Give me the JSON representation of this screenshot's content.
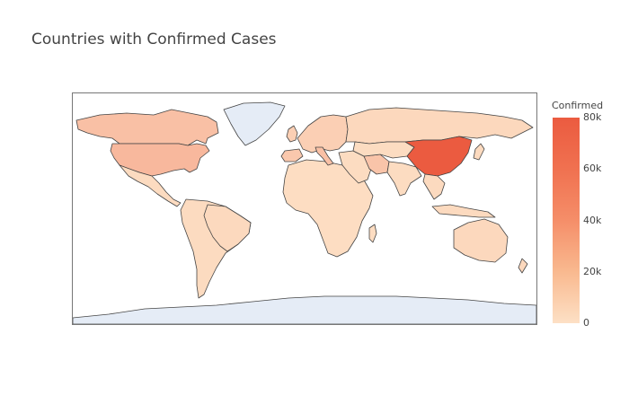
{
  "title": "Countries with Confirmed Cases",
  "colorbar": {
    "title": "Confirmed",
    "ticks": [
      "0",
      "20k",
      "40k",
      "60k",
      "80k"
    ],
    "tick_values": [
      0,
      20000,
      40000,
      60000,
      80000
    ],
    "range": [
      0,
      80000
    ],
    "colors": [
      "#fde0c5",
      "#eb5b40"
    ]
  },
  "chart_data": {
    "type": "choropleth",
    "projection": "equirectangular",
    "z_range": [
      0,
      80000
    ],
    "no_data_color": "#e5ecf6",
    "regions": [
      {
        "id": "china",
        "value": 80000
      },
      {
        "id": "usa",
        "value": 16000
      },
      {
        "id": "canada",
        "value": 12000
      },
      {
        "id": "italy",
        "value": 12000
      },
      {
        "id": "iran",
        "value": 10000
      },
      {
        "id": "spain",
        "value": 8000
      },
      {
        "id": "europe",
        "value": 5000
      },
      {
        "id": "russia",
        "value": 2000
      },
      {
        "id": "australia",
        "value": 2000
      },
      {
        "id": "brazil",
        "value": 1500
      },
      {
        "id": "south-america",
        "value": 1000
      },
      {
        "id": "africa",
        "value": 500
      },
      {
        "id": "india",
        "value": 800
      },
      {
        "id": "central-asia",
        "value": 700
      },
      {
        "id": "southeast-asia",
        "value": 1200
      }
    ]
  }
}
